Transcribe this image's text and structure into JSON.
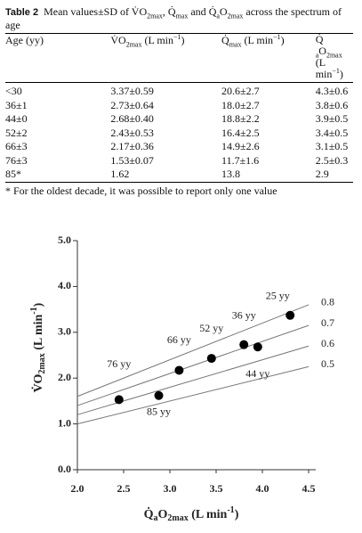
{
  "caption": {
    "label": "Table 2",
    "parts": [
      "Mean values±SD of ",
      "V̇O",
      "2max",
      ", ",
      "Q̇",
      "max",
      " and ",
      "Q̇",
      "a",
      "O",
      "2max",
      " across the spectrum of age"
    ]
  },
  "table": {
    "header": [
      [
        "Age  (yy)"
      ],
      [
        "V̇O",
        "2max",
        "  (L min",
        "−1",
        ")"
      ],
      [
        "Q̇",
        "max",
        "  (L min",
        "−1",
        ")"
      ],
      [
        "Q̇",
        "a",
        "O",
        "2max",
        "(L",
        "min",
        "−1",
        ")"
      ]
    ],
    "rows": [
      [
        "<30",
        "3.37±0.59",
        "20.6±2.7",
        "4.3±0.6"
      ],
      [
        "36±1",
        "2.73±0.64",
        "18.0±2.7",
        "3.8±0.6"
      ],
      [
        "44±0",
        "2.68±0.40",
        "18.8±2.2",
        "3.9±0.5"
      ],
      [
        "52±2",
        "2.43±0.53",
        "16.4±2.5",
        "3.4±0.5"
      ],
      [
        "66±3",
        "2.17±0.36",
        "14.9±2.6",
        "3.1±0.5"
      ],
      [
        "76±3",
        "1.53±0.07",
        "11.7±1.6",
        "2.5±0.3"
      ],
      [
        "85*",
        "1.62",
        "13.8",
        "2.9"
      ]
    ]
  },
  "footnote": "* For the oldest decade, it was possible to report only one value",
  "chart_data": {
    "type": "scatter",
    "x_label": [
      "Q̇",
      "a",
      "O",
      "2max",
      " (L min",
      "-1",
      ")"
    ],
    "y_label": [
      "V̇O",
      "2max",
      " (L min",
      "-1",
      ")"
    ],
    "point_labels": [
      "25 yy",
      "36 yy",
      "44 yy",
      "52 yy",
      "66 yy",
      "76 yy",
      "85 yy"
    ],
    "x": [
      4.3,
      3.8,
      3.95,
      3.45,
      3.1,
      2.45,
      2.88
    ],
    "values": [
      3.37,
      2.73,
      2.68,
      2.43,
      2.17,
      1.53,
      1.62
    ],
    "color": "#000000",
    "iso_lines": [
      0.8,
      0.7,
      0.6,
      0.5
    ],
    "xlim": [
      2,
      4.5
    ],
    "ylim": [
      0,
      5
    ],
    "xticks": [
      {
        "value": 2,
        "label": "2.0"
      },
      {
        "value": 2.5,
        "label": "2.5"
      },
      {
        "value": 3,
        "label": "3.0"
      },
      {
        "value": 3.5,
        "label": "3.5"
      },
      {
        "value": 4,
        "label": "4.0"
      },
      {
        "value": 4.5,
        "label": "4.5"
      }
    ],
    "yticks": [
      {
        "value": 0,
        "label": "0.0"
      },
      {
        "value": 1,
        "label": "1.0"
      },
      {
        "value": 2,
        "label": "2.0"
      },
      {
        "value": 3,
        "label": "3.0"
      },
      {
        "value": 4,
        "label": "4.0"
      },
      {
        "value": 5,
        "label": "5.0"
      }
    ]
  }
}
